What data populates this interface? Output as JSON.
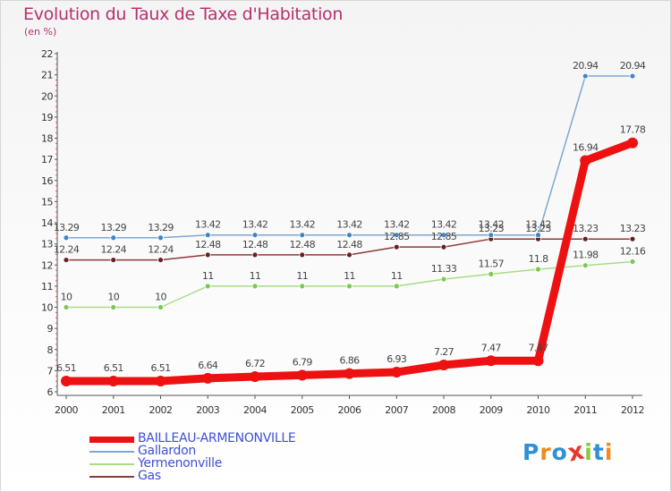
{
  "title": "Evolution du Taux de Taxe d'Habitation",
  "subtitle": "(en %)",
  "logo": {
    "text": "Proxiti",
    "letters": [
      "P",
      "r",
      "o",
      "x",
      "i",
      "t",
      "i"
    ],
    "colors": [
      "#2f8fd8",
      "#f08a1c",
      "#2f8fd8",
      "#e8382d",
      "#8cc63f",
      "#2f8fd8",
      "#f08a1c"
    ]
  },
  "chart_data": {
    "type": "line",
    "title": "Evolution du Taux de Taxe d'Habitation",
    "ylabel": "(en %)",
    "xlabel": "",
    "x": [
      "2000",
      "2001",
      "2002",
      "2003",
      "2004",
      "2005",
      "2006",
      "2007",
      "2008",
      "2009",
      "2010",
      "2011",
      "2012"
    ],
    "ylim": [
      6,
      22
    ],
    "yticks": [
      "6",
      "7",
      "8",
      "9",
      "10",
      "11",
      "12",
      "13",
      "14",
      "15",
      "16",
      "17",
      "18",
      "19",
      "20",
      "21",
      "22"
    ],
    "grid": false,
    "legend_position": "bottom-left",
    "series": [
      {
        "name": "BAILLEAU-ARMENONVILLE",
        "color": "#ee1111",
        "emphasis": true,
        "values": [
          6.51,
          6.51,
          6.51,
          6.64,
          6.72,
          6.79,
          6.86,
          6.93,
          7.27,
          7.47,
          7.47,
          16.94,
          17.78
        ],
        "labels": [
          "6.51",
          "6.51",
          "6.51",
          "6.64",
          "6.72",
          "6.79",
          "6.86",
          "6.93",
          "7.27",
          "7.47",
          "7.47",
          "16.94",
          "17.78"
        ]
      },
      {
        "name": "Gallardon",
        "color": "#7fa7cf",
        "marker_color": "#3f86c7",
        "values": [
          13.29,
          13.29,
          13.29,
          13.42,
          13.42,
          13.42,
          13.42,
          13.42,
          13.42,
          13.42,
          13.42,
          20.94,
          20.94
        ],
        "labels": [
          "13.29",
          "13.29",
          "13.29",
          "13.42",
          "13.42",
          "13.42",
          "13.42",
          "13.42",
          "13.42",
          "13.42",
          "13.42",
          "20.94",
          "20.94"
        ]
      },
      {
        "name": "Yermenonville",
        "color": "#a6dd85",
        "marker_color": "#7cc94f",
        "values": [
          10,
          10,
          10,
          11,
          11,
          11,
          11,
          11,
          11.33,
          11.57,
          11.8,
          11.98,
          12.16
        ],
        "labels": [
          "10",
          "10",
          "10",
          "11",
          "11",
          "11",
          "11",
          "11",
          "11.33",
          "11.57",
          "11.8",
          "11.98",
          "12.16"
        ]
      },
      {
        "name": "Gas",
        "color": "#8c3b3b",
        "marker_color": "#6b1f1f",
        "values": [
          12.24,
          12.24,
          12.24,
          12.48,
          12.48,
          12.48,
          12.48,
          12.85,
          12.85,
          13.23,
          13.23,
          13.23,
          13.23
        ],
        "labels": [
          "12.24",
          "12.24",
          "12.24",
          "12.48",
          "12.48",
          "12.48",
          "12.48",
          "12.85",
          "12.85",
          "13.23",
          "13.23",
          "13.23",
          "13.23"
        ]
      }
    ]
  }
}
